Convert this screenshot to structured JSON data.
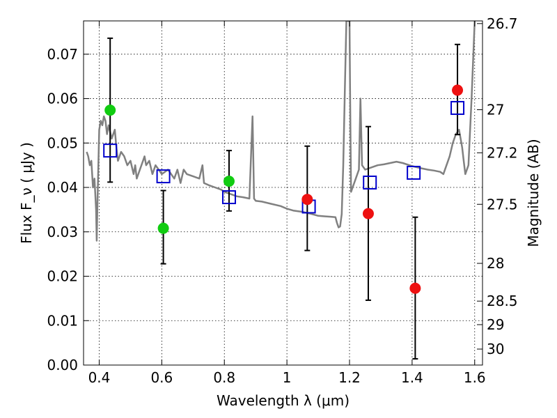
{
  "chart_data": {
    "type": "scatter",
    "xlabel": "Wavelength  λ (μm)",
    "ylabel": "Flux  F_ν  ( μJy )",
    "y2label": "Magnitude (AB)",
    "xlim": [
      0.35,
      1.625
    ],
    "ylim": [
      0.0,
      0.0775
    ],
    "grid": true,
    "x_ticks": [
      0.4,
      0.6,
      0.8,
      1.0,
      1.2,
      1.4,
      1.6
    ],
    "x_tick_labels": [
      "0.4",
      "0.6",
      "0.8",
      "1",
      "1.2",
      "1.4",
      "1.6"
    ],
    "y_ticks": [
      0.0,
      0.01,
      0.02,
      0.03,
      0.04,
      0.05,
      0.06,
      0.07
    ],
    "y_tick_labels": [
      "0.00",
      "0.01",
      "0.02",
      "0.03",
      "0.04",
      "0.05",
      "0.06",
      "0.07"
    ],
    "y2_ticks": [
      {
        "label": "26.7",
        "flux": 0.0769
      },
      {
        "label": "27",
        "flux": 0.0575
      },
      {
        "label": "27.2",
        "flux": 0.0478
      },
      {
        "label": "27.5",
        "flux": 0.0362
      },
      {
        "label": "28",
        "flux": 0.0229
      },
      {
        "label": "28.5",
        "flux": 0.0144
      },
      {
        "label": "29",
        "flux": 0.0091
      },
      {
        "label": "30",
        "flux": 0.0036
      }
    ],
    "colors": {
      "green": "#11cc11",
      "red": "#ee1111",
      "blue": "#0000cc",
      "model": "#808080",
      "errorbar": "#000000"
    },
    "errorbars": [
      {
        "x": 0.435,
        "low": 0.0412,
        "high": 0.0736
      },
      {
        "x": 0.605,
        "low": 0.0228,
        "high": 0.0393
      },
      {
        "x": 0.815,
        "low": 0.0347,
        "high": 0.0483
      },
      {
        "x": 1.065,
        "low": 0.0258,
        "high": 0.0493
      },
      {
        "x": 1.26,
        "low": 0.0146,
        "high": 0.0537
      },
      {
        "x": 1.41,
        "low": 0.0014,
        "high": 0.0333
      },
      {
        "x": 1.545,
        "low": 0.0519,
        "high": 0.0722
      }
    ],
    "series": [
      {
        "marker": "circle",
        "color": "#11cc11",
        "points": [
          [
            0.435,
            0.0574
          ],
          [
            0.605,
            0.0308
          ],
          [
            0.815,
            0.0414
          ]
        ]
      },
      {
        "marker": "circle",
        "color": "#ee1111",
        "points": [
          [
            1.065,
            0.0373
          ],
          [
            1.26,
            0.0341
          ],
          [
            1.41,
            0.0173
          ],
          [
            1.545,
            0.0619
          ]
        ]
      },
      {
        "marker": "square",
        "color": "#0000cc",
        "points": [
          [
            0.435,
            0.0483
          ],
          [
            0.605,
            0.0425
          ],
          [
            0.815,
            0.0378
          ],
          [
            1.07,
            0.0357
          ],
          [
            1.265,
            0.0411
          ],
          [
            1.405,
            0.0433
          ],
          [
            1.545,
            0.0579
          ]
        ]
      },
      {
        "marker": "line",
        "color": "#808080",
        "points": [
          [
            0.36,
            0.048
          ],
          [
            0.365,
            0.047
          ],
          [
            0.37,
            0.045
          ],
          [
            0.375,
            0.046
          ],
          [
            0.38,
            0.04
          ],
          [
            0.385,
            0.042
          ],
          [
            0.39,
            0.035
          ],
          [
            0.392,
            0.028
          ],
          [
            0.395,
            0.038
          ],
          [
            0.4,
            0.053
          ],
          [
            0.405,
            0.055
          ],
          [
            0.41,
            0.054
          ],
          [
            0.415,
            0.056
          ],
          [
            0.42,
            0.055
          ],
          [
            0.425,
            0.052
          ],
          [
            0.43,
            0.054
          ],
          [
            0.44,
            0.051
          ],
          [
            0.45,
            0.053
          ],
          [
            0.455,
            0.049
          ],
          [
            0.46,
            0.046
          ],
          [
            0.47,
            0.048
          ],
          [
            0.48,
            0.047
          ],
          [
            0.49,
            0.045
          ],
          [
            0.5,
            0.046
          ],
          [
            0.51,
            0.043
          ],
          [
            0.515,
            0.045
          ],
          [
            0.52,
            0.042
          ],
          [
            0.53,
            0.044
          ],
          [
            0.54,
            0.046
          ],
          [
            0.545,
            0.047
          ],
          [
            0.55,
            0.045
          ],
          [
            0.56,
            0.046
          ],
          [
            0.57,
            0.043
          ],
          [
            0.58,
            0.045
          ],
          [
            0.59,
            0.044
          ],
          [
            0.6,
            0.043
          ],
          [
            0.61,
            0.0435
          ],
          [
            0.62,
            0.044
          ],
          [
            0.64,
            0.042
          ],
          [
            0.65,
            0.044
          ],
          [
            0.66,
            0.041
          ],
          [
            0.67,
            0.044
          ],
          [
            0.68,
            0.043
          ],
          [
            0.7,
            0.0425
          ],
          [
            0.72,
            0.042
          ],
          [
            0.73,
            0.045
          ],
          [
            0.735,
            0.041
          ],
          [
            0.75,
            0.0405
          ],
          [
            0.77,
            0.04
          ],
          [
            0.79,
            0.0395
          ],
          [
            0.8,
            0.039
          ],
          [
            0.82,
            0.0385
          ],
          [
            0.84,
            0.038
          ],
          [
            0.86,
            0.0378
          ],
          [
            0.88,
            0.0375
          ],
          [
            0.89,
            0.056
          ],
          [
            0.895,
            0.0375
          ],
          [
            0.9,
            0.037
          ],
          [
            0.92,
            0.0368
          ],
          [
            0.95,
            0.0363
          ],
          [
            0.98,
            0.0358
          ],
          [
            1.0,
            0.0352
          ],
          [
            1.02,
            0.0348
          ],
          [
            1.05,
            0.0345
          ],
          [
            1.08,
            0.034
          ],
          [
            1.1,
            0.0336
          ],
          [
            1.12,
            0.0335
          ],
          [
            1.14,
            0.0334
          ],
          [
            1.155,
            0.0333
          ],
          [
            1.16,
            0.032
          ],
          [
            1.165,
            0.031
          ],
          [
            1.17,
            0.0312
          ],
          [
            1.175,
            0.034
          ],
          [
            1.18,
            0.045
          ],
          [
            1.185,
            0.062
          ],
          [
            1.19,
            0.0775
          ],
          [
            1.2,
            0.0775
          ],
          [
            1.202,
            0.06
          ],
          [
            1.205,
            0.039
          ],
          [
            1.21,
            0.04
          ],
          [
            1.22,
            0.042
          ],
          [
            1.23,
            0.044
          ],
          [
            1.235,
            0.06
          ],
          [
            1.24,
            0.045
          ],
          [
            1.25,
            0.044
          ],
          [
            1.27,
            0.0445
          ],
          [
            1.29,
            0.045
          ],
          [
            1.31,
            0.0452
          ],
          [
            1.33,
            0.0455
          ],
          [
            1.35,
            0.0458
          ],
          [
            1.37,
            0.0455
          ],
          [
            1.4,
            0.0448
          ],
          [
            1.43,
            0.0443
          ],
          [
            1.45,
            0.044
          ],
          [
            1.47,
            0.0438
          ],
          [
            1.49,
            0.0435
          ],
          [
            1.5,
            0.043
          ],
          [
            1.51,
            0.045
          ],
          [
            1.52,
            0.047
          ],
          [
            1.53,
            0.05
          ],
          [
            1.54,
            0.052
          ],
          [
            1.55,
            0.053
          ],
          [
            1.56,
            0.049
          ],
          [
            1.565,
            0.046
          ],
          [
            1.57,
            0.043
          ],
          [
            1.58,
            0.045
          ],
          [
            1.59,
            0.06
          ],
          [
            1.6,
            0.0775
          ]
        ]
      }
    ]
  }
}
